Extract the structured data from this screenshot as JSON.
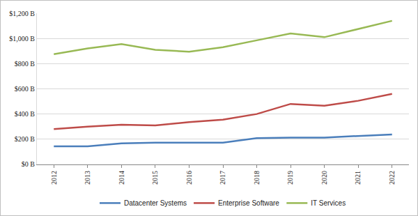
{
  "chart_data": {
    "type": "line",
    "categories": [
      "2012",
      "2013",
      "2014",
      "2015",
      "2016",
      "2017",
      "2018",
      "2019",
      "2020",
      "2021",
      "2022"
    ],
    "series": [
      {
        "name": "Datacenter Systems",
        "color": "#4a7ebb",
        "values": [
          143,
          143,
          167,
          172,
          172,
          172,
          208,
          213,
          213,
          227,
          238
        ]
      },
      {
        "name": "Enterprise Software",
        "color": "#be4b48",
        "values": [
          280,
          300,
          315,
          310,
          335,
          355,
          400,
          480,
          465,
          505,
          560
        ]
      },
      {
        "name": "IT Services",
        "color": "#98b954",
        "values": [
          875,
          920,
          955,
          910,
          895,
          930,
          985,
          1040,
          1010,
          1075,
          1140
        ]
      }
    ],
    "ylim": [
      0,
      1200
    ],
    "yticks": [
      {
        "value": 0,
        "label": "$0 B"
      },
      {
        "value": 200,
        "label": "$200 B"
      },
      {
        "value": 400,
        "label": "$400 B"
      },
      {
        "value": 600,
        "label": "$600 B"
      },
      {
        "value": 800,
        "label": "$800 B"
      },
      {
        "value": 1000,
        "label": "$1,000 B"
      },
      {
        "value": 1200,
        "label": "$1,200 B"
      }
    ],
    "grid": true,
    "legend": "bottom"
  }
}
